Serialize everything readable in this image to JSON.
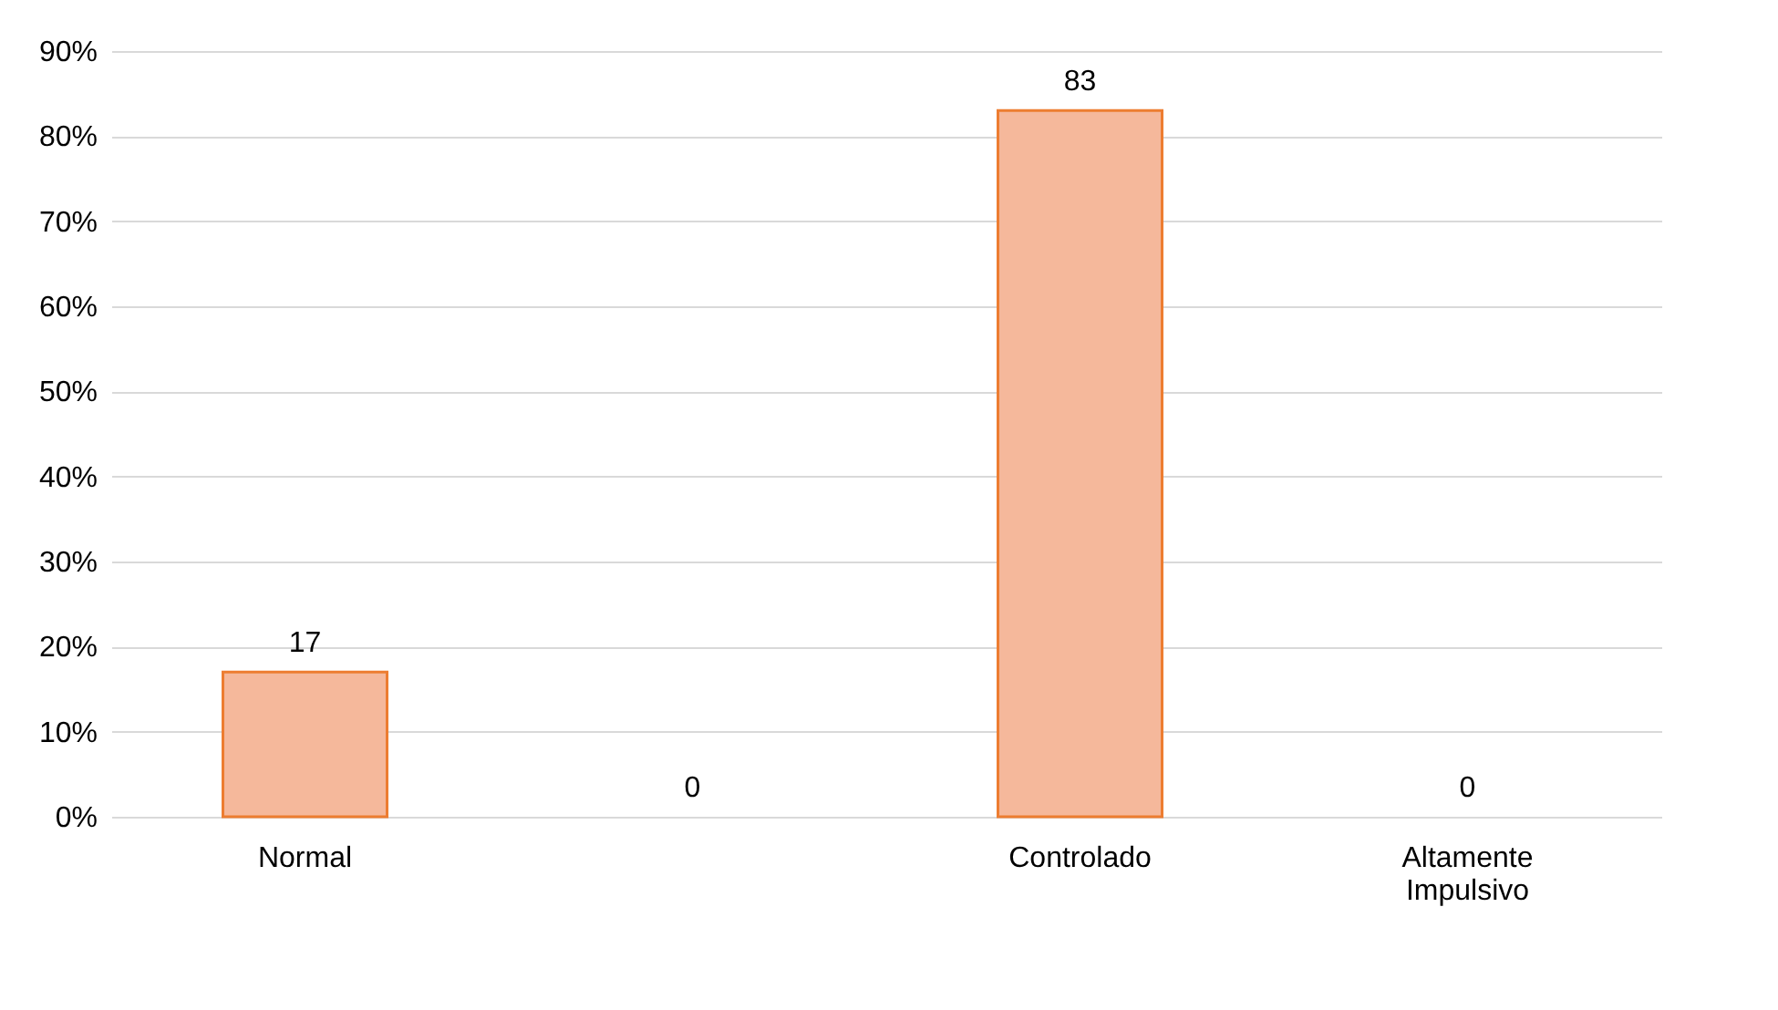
{
  "chart_data": {
    "type": "bar",
    "categories": [
      "Normal",
      null,
      "Controlado",
      "Altamente Impulsivo"
    ],
    "series": [
      {
        "color": "#f5b89b",
        "values": [
          17,
          0,
          83,
          0
        ]
      }
    ],
    "ylim": [
      0,
      90
    ],
    "yticks": [
      {
        "value": 0,
        "label": "0%"
      },
      {
        "value": 10,
        "label": "10%"
      },
      {
        "value": 20,
        "label": "20%"
      },
      {
        "value": 30,
        "label": "30%"
      },
      {
        "value": 40,
        "label": "40%"
      },
      {
        "value": 50,
        "label": "50%"
      },
      {
        "value": 60,
        "label": "60%"
      },
      {
        "value": 70,
        "label": "70%"
      },
      {
        "value": 80,
        "label": "80%"
      },
      {
        "value": 90,
        "label": "90%"
      }
    ],
    "grid": "y",
    "data_labels": true
  }
}
